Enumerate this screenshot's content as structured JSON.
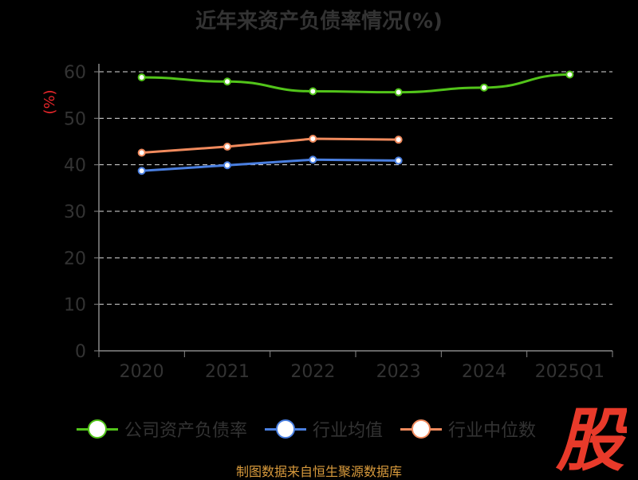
{
  "title": "近年来资产负债率情况(%)",
  "source_note": "制图数据来自恒生聚源数据库",
  "watermark": {
    "text": "股",
    "color": "#e83a2a"
  },
  "chart_data": {
    "type": "line",
    "title": "近年来资产负债率情况(%)",
    "xlabel": "",
    "ylabel": "(%)",
    "categories": [
      "2020",
      "2021",
      "2022",
      "2023",
      "2024",
      "2025Q1"
    ],
    "ylim": [
      0,
      60
    ],
    "yticks": [
      "0",
      "10",
      "20",
      "30",
      "40",
      "50",
      "60"
    ],
    "grid": true,
    "legend_position": "bottom",
    "series": [
      {
        "name": "公司资产负债率",
        "color": "#52c41a",
        "values": [
          58.8,
          57.9,
          55.8,
          55.6,
          56.6,
          59.4
        ]
      },
      {
        "name": "行业均值",
        "color": "#4a7fe0",
        "values": [
          38.7,
          39.9,
          41.1,
          40.9,
          null,
          null
        ]
      },
      {
        "name": "行业中位数",
        "color": "#f08a5d",
        "values": [
          42.6,
          43.9,
          45.6,
          45.4,
          null,
          null
        ]
      }
    ]
  }
}
